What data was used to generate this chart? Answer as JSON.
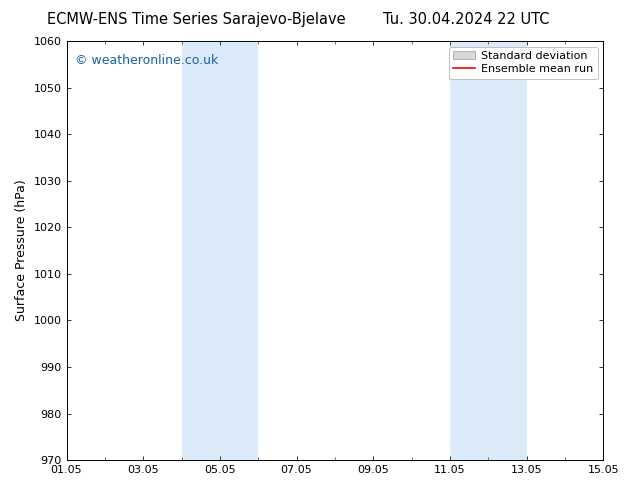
{
  "title_left": "ECMW-ENS Time Series Sarajevo-Bjelave",
  "title_right": "Tu. 30.04.2024 22 UTC",
  "ylabel": "Surface Pressure (hPa)",
  "ylim": [
    970,
    1060
  ],
  "yticks": [
    970,
    980,
    990,
    1000,
    1010,
    1020,
    1030,
    1040,
    1050,
    1060
  ],
  "xlim": [
    0,
    14
  ],
  "xtick_labels": [
    "01.05",
    "03.05",
    "05.05",
    "07.05",
    "09.05",
    "11.05",
    "13.05",
    "15.05"
  ],
  "xtick_positions": [
    0,
    2,
    4,
    6,
    8,
    10,
    12,
    14
  ],
  "shaded_regions": [
    {
      "start": 3.0,
      "end": 5.0,
      "color": "#daeaf8"
    },
    {
      "start": 10.0,
      "end": 12.0,
      "color": "#daeaf8"
    }
  ],
  "bg_color": "#ffffff",
  "plot_bg_color": "#ffffff",
  "border_color": "#000000",
  "grid_color": "#cccccc",
  "legend_std_dev_facecolor": "#d8d8d8",
  "legend_std_dev_edgecolor": "#999999",
  "legend_mean_run_color": "#ff0000",
  "watermark_text": "© weatheronline.co.uk",
  "watermark_color": "#1a5fa8",
  "title_fontsize": 10.5,
  "legend_fontsize": 8,
  "ylabel_fontsize": 9,
  "tick_fontsize": 8,
  "watermark_fontsize": 9
}
